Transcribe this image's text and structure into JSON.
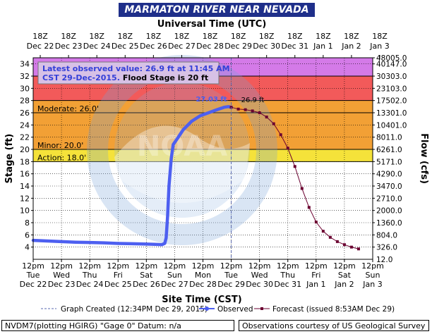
{
  "page": {
    "title": "MARMATON RIVER NEAR NEVADA",
    "subtitle_top": "Universal Time (UTC)",
    "xlabel": "Site Time (CST)",
    "ylabel_left": "Stage (ft)",
    "ylabel_right": "Flow (cfs)",
    "footer_left": "NVDM7(plotting HGIRG) \"Gage 0\" Datum: n/a",
    "footer_right": "Observations courtesy of US Geological Survey",
    "watermark_text": "NATIONAL OCEANIC AND ATMOSPHERIC ADMINISTRATION · U.S. DEPARTMENT OF COMMERCE",
    "watermark_short": "NOAA"
  },
  "annotation": {
    "line1": "Latest observed value: 26.9 ft at 11:45 AM",
    "line2a": "CST 29-Dec-2015.",
    "line2b": "Flood Stage is 20 ft"
  },
  "legend": {
    "created": "Graph Created (12:34PM Dec 29, 2015)",
    "observed": "Observed",
    "forecast": "Forecast (issued 8:53AM Dec 29)"
  },
  "colors": {
    "title_bg": "#1f2f8a",
    "record": "#d47ae8",
    "major": "#f25a5a",
    "moderate": "#f2a035",
    "minor": "#f5e23a",
    "observed": "#4d5ff0",
    "forecast": "#6b0030",
    "now_line": "#5a6ab0"
  },
  "chart_data": {
    "type": "line",
    "title": "MARMATON RIVER NEAR NEVADA",
    "xlabel": "Site Time (CST)",
    "ylabel": "Stage (ft)",
    "ylabel_right": "Flow (cfs)",
    "ylim": [
      2,
      35
    ],
    "y_ticks": [
      4,
      6,
      8,
      10,
      12,
      14,
      16,
      18,
      20,
      22,
      24,
      26,
      28,
      30,
      32,
      34
    ],
    "right_ticks": [
      {
        "stage": 4,
        "label": "326.0"
      },
      {
        "stage": 6,
        "label": "804.0"
      },
      {
        "stage": 8,
        "label": "1360.0"
      },
      {
        "stage": 10,
        "label": "2000.0"
      },
      {
        "stage": 12,
        "label": "2710.0"
      },
      {
        "stage": 14,
        "label": "3470.0"
      },
      {
        "stage": 16,
        "label": "4290.0"
      },
      {
        "stage": 18,
        "label": "5171.0"
      },
      {
        "stage": 20,
        "label": "6261.0"
      },
      {
        "stage": 22,
        "label": "8011.0"
      },
      {
        "stage": 24,
        "label": "10401.0"
      },
      {
        "stage": 26,
        "label": "13301.0"
      },
      {
        "stage": 28,
        "label": "17502.0"
      },
      {
        "stage": 30,
        "label": "23103.0"
      },
      {
        "stage": 32,
        "label": "30303.0"
      },
      {
        "stage": 34,
        "label": "40147.0"
      },
      {
        "stage": 35,
        "label": "48005.0"
      }
    ],
    "right_label_zero": "12.0",
    "x_bottom_ticks": [
      {
        "t": 0,
        "time": "12pm",
        "day": "Tue",
        "date": "Dec 22"
      },
      {
        "t": 1,
        "time": "12pm",
        "day": "Wed",
        "date": "Dec 23"
      },
      {
        "t": 2,
        "time": "12pm",
        "day": "Thu",
        "date": "Dec 24"
      },
      {
        "t": 3,
        "time": "12pm",
        "day": "Fri",
        "date": "Dec 25"
      },
      {
        "t": 4,
        "time": "12pm",
        "day": "Sat",
        "date": "Dec 26"
      },
      {
        "t": 5,
        "time": "12pm",
        "day": "Sun",
        "date": "Dec 27"
      },
      {
        "t": 6,
        "time": "12pm",
        "day": "Mon",
        "date": "Dec 28"
      },
      {
        "t": 7,
        "time": "12pm",
        "day": "Tue",
        "date": "Dec 29"
      },
      {
        "t": 8,
        "time": "12pm",
        "day": "Wed",
        "date": "Dec 30"
      },
      {
        "t": 9,
        "time": "12pm",
        "day": "Thu",
        "date": "Dec 31"
      },
      {
        "t": 10,
        "time": "12pm",
        "day": "Fri",
        "date": "Jan 1"
      },
      {
        "t": 11,
        "time": "12pm",
        "day": "Sat",
        "date": "Jan 2"
      },
      {
        "t": 12,
        "time": "12pm",
        "day": "Sun",
        "date": "Jan 3"
      }
    ],
    "x_top_ticks": [
      {
        "t": 0.25,
        "time": "18Z",
        "date": "Dec 22"
      },
      {
        "t": 1.25,
        "time": "18Z",
        "date": "Dec 23"
      },
      {
        "t": 2.25,
        "time": "18Z",
        "date": "Dec 24"
      },
      {
        "t": 3.25,
        "time": "18Z",
        "date": "Dec 25"
      },
      {
        "t": 4.25,
        "time": "18Z",
        "date": "Dec 26"
      },
      {
        "t": 5.25,
        "time": "18Z",
        "date": "Dec 27"
      },
      {
        "t": 6.25,
        "time": "18Z",
        "date": "Dec 28"
      },
      {
        "t": 7.25,
        "time": "18Z",
        "date": "Dec 29"
      },
      {
        "t": 8.25,
        "time": "18Z",
        "date": "Dec 30"
      },
      {
        "t": 9.25,
        "time": "18Z",
        "date": "Dec 31"
      },
      {
        "t": 10.25,
        "time": "18Z",
        "date": "Jan 1"
      },
      {
        "t": 11.25,
        "time": "18Z",
        "date": "Jan 2"
      },
      {
        "t": 12.25,
        "time": "18Z",
        "date": "Jan 3"
      }
    ],
    "x_unit": "days since Dec 22 12pm CST",
    "flood_categories": [
      {
        "name": "Record",
        "from": 32,
        "to": 35,
        "color": "#d47ae8"
      },
      {
        "name": "Major",
        "from": 28,
        "to": 32,
        "color": "#f25a5a"
      },
      {
        "name": "Moderate",
        "from": 26,
        "to": 28,
        "color": "#f2a035",
        "label": "Moderate: 26.0'"
      },
      {
        "name": "Minor",
        "from": 20,
        "to": 26,
        "color": "#f2a035",
        "label": "Minor: 20.0'"
      },
      {
        "name": "Action",
        "from": 18,
        "to": 20,
        "color": "#f5e23a",
        "label": "Action: 18.0'"
      }
    ],
    "category_labels": [
      {
        "stage": 26,
        "text": "Moderate: 26.0'"
      },
      {
        "stage": 20,
        "text": "Minor: 20.0'"
      },
      {
        "stage": 18,
        "text": "Action: 18.0'"
      }
    ],
    "now_t": 7.0,
    "series": [
      {
        "name": "Observed",
        "values": [
          [
            0.0,
            5.1
          ],
          [
            0.5,
            5.0
          ],
          [
            1.0,
            4.9
          ],
          [
            1.5,
            4.8
          ],
          [
            2.0,
            4.75
          ],
          [
            2.5,
            4.7
          ],
          [
            3.0,
            4.6
          ],
          [
            3.5,
            4.55
          ],
          [
            4.0,
            4.5
          ],
          [
            4.3,
            4.45
          ],
          [
            4.55,
            4.4
          ],
          [
            4.65,
            4.6
          ],
          [
            4.7,
            5.5
          ],
          [
            4.75,
            9.0
          ],
          [
            4.8,
            14.0
          ],
          [
            4.88,
            18.5
          ],
          [
            4.95,
            20.8
          ],
          [
            5.1,
            21.8
          ],
          [
            5.3,
            23.2
          ],
          [
            5.6,
            24.6
          ],
          [
            5.9,
            25.5
          ],
          [
            6.2,
            26.0
          ],
          [
            6.5,
            26.5
          ],
          [
            6.75,
            26.9
          ],
          [
            6.9,
            27.0
          ],
          [
            7.0,
            26.9
          ]
        ]
      },
      {
        "name": "Forecast",
        "values": [
          [
            7.0,
            26.9
          ],
          [
            7.25,
            26.6
          ],
          [
            7.5,
            26.5
          ],
          [
            7.75,
            26.3
          ],
          [
            8.0,
            26.0
          ],
          [
            8.25,
            25.3
          ],
          [
            8.5,
            24.2
          ],
          [
            8.75,
            22.4
          ],
          [
            9.0,
            20.2
          ],
          [
            9.25,
            17.2
          ],
          [
            9.5,
            13.6
          ],
          [
            9.75,
            10.5
          ],
          [
            10.0,
            8.1
          ],
          [
            10.25,
            6.6
          ],
          [
            10.5,
            5.6
          ],
          [
            10.75,
            4.9
          ],
          [
            11.0,
            4.4
          ],
          [
            11.25,
            4.0
          ],
          [
            11.5,
            3.7
          ]
        ]
      }
    ],
    "point_labels": [
      {
        "t": 6.85,
        "stage": 27.03,
        "text": "27.03 ft",
        "color": "#4d5ff0"
      },
      {
        "t": 7.35,
        "stage": 26.9,
        "text": "26.9 ft",
        "color": "#000000"
      }
    ]
  }
}
